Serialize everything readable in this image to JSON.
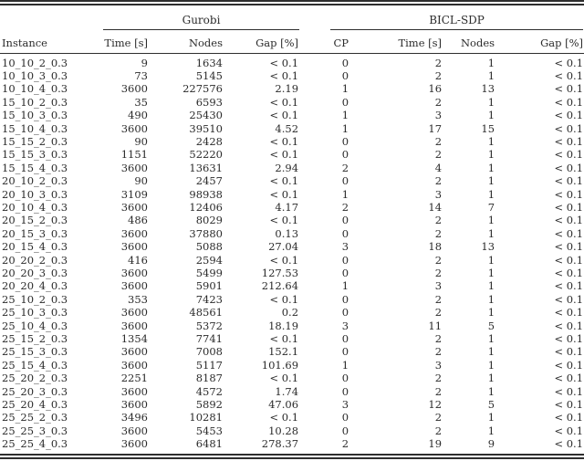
{
  "table": {
    "group_headers": [
      "Gurobi",
      "BICL-SDP"
    ],
    "instance_header": "Instance",
    "sub_headers": [
      "Time [s]",
      "Nodes",
      "Gap [%]",
      "CP",
      "Time [s]",
      "Nodes",
      "Gap [%]"
    ],
    "rows": [
      [
        "10_10_2_0.3",
        "9",
        "1634",
        "< 0.1",
        "0",
        "2",
        "1",
        "< 0.1"
      ],
      [
        "10_10_3_0.3",
        "73",
        "5145",
        "< 0.1",
        "0",
        "2",
        "1",
        "< 0.1"
      ],
      [
        "10_10_4_0.3",
        "3600",
        "227576",
        "2.19",
        "1",
        "16",
        "13",
        "< 0.1"
      ],
      [
        "15_10_2_0.3",
        "35",
        "6593",
        "< 0.1",
        "0",
        "2",
        "1",
        "< 0.1"
      ],
      [
        "15_10_3_0.3",
        "490",
        "25430",
        "< 0.1",
        "1",
        "3",
        "1",
        "< 0.1"
      ],
      [
        "15_10_4_0.3",
        "3600",
        "39510",
        "4.52",
        "1",
        "17",
        "15",
        "< 0.1"
      ],
      [
        "15_15_2_0.3",
        "90",
        "2428",
        "< 0.1",
        "0",
        "2",
        "1",
        "< 0.1"
      ],
      [
        "15_15_3_0.3",
        "1151",
        "52220",
        "< 0.1",
        "0",
        "2",
        "1",
        "< 0.1"
      ],
      [
        "15_15_4_0.3",
        "3600",
        "13631",
        "2.94",
        "2",
        "4",
        "1",
        "< 0.1"
      ],
      [
        "20_10_2_0.3",
        "90",
        "2457",
        "< 0.1",
        "0",
        "2",
        "1",
        "< 0.1"
      ],
      [
        "20_10_3_0.3",
        "3109",
        "98938",
        "< 0.1",
        "1",
        "3",
        "1",
        "< 0.1"
      ],
      [
        "20_10_4_0.3",
        "3600",
        "12406",
        "4.17",
        "2",
        "14",
        "7",
        "< 0.1"
      ],
      [
        "20_15_2_0.3",
        "486",
        "8029",
        "< 0.1",
        "0",
        "2",
        "1",
        "< 0.1"
      ],
      [
        "20_15_3_0.3",
        "3600",
        "37880",
        "0.13",
        "0",
        "2",
        "1",
        "< 0.1"
      ],
      [
        "20_15_4_0.3",
        "3600",
        "5088",
        "27.04",
        "3",
        "18",
        "13",
        "< 0.1"
      ],
      [
        "20_20_2_0.3",
        "416",
        "2594",
        "< 0.1",
        "0",
        "2",
        "1",
        "< 0.1"
      ],
      [
        "20_20_3_0.3",
        "3600",
        "5499",
        "127.53",
        "0",
        "2",
        "1",
        "< 0.1"
      ],
      [
        "20_20_4_0.3",
        "3600",
        "5901",
        "212.64",
        "1",
        "3",
        "1",
        "< 0.1"
      ],
      [
        "25_10_2_0.3",
        "353",
        "7423",
        "< 0.1",
        "0",
        "2",
        "1",
        "< 0.1"
      ],
      [
        "25_10_3_0.3",
        "3600",
        "48561",
        "0.2",
        "0",
        "2",
        "1",
        "< 0.1"
      ],
      [
        "25_10_4_0.3",
        "3600",
        "5372",
        "18.19",
        "3",
        "11",
        "5",
        "< 0.1"
      ],
      [
        "25_15_2_0.3",
        "1354",
        "7741",
        "< 0.1",
        "0",
        "2",
        "1",
        "< 0.1"
      ],
      [
        "25_15_3_0.3",
        "3600",
        "7008",
        "152.1",
        "0",
        "2",
        "1",
        "< 0.1"
      ],
      [
        "25_15_4_0.3",
        "3600",
        "5117",
        "101.69",
        "1",
        "3",
        "1",
        "< 0.1"
      ],
      [
        "25_20_2_0.3",
        "2251",
        "8187",
        "< 0.1",
        "0",
        "2",
        "1",
        "< 0.1"
      ],
      [
        "25_20_3_0.3",
        "3600",
        "4572",
        "1.74",
        "0",
        "2",
        "1",
        "< 0.1"
      ],
      [
        "25_20_4_0.3",
        "3600",
        "5892",
        "47.06",
        "3",
        "12",
        "5",
        "< 0.1"
      ],
      [
        "25_25_2_0.3",
        "3496",
        "10281",
        "< 0.1",
        "0",
        "2",
        "1",
        "< 0.1"
      ],
      [
        "25_25_3_0.3",
        "3600",
        "5453",
        "10.28",
        "0",
        "2",
        "1",
        "< 0.1"
      ],
      [
        "25_25_4_0.3",
        "3600",
        "6481",
        "278.37",
        "2",
        "19",
        "9",
        "< 0.1"
      ]
    ]
  }
}
